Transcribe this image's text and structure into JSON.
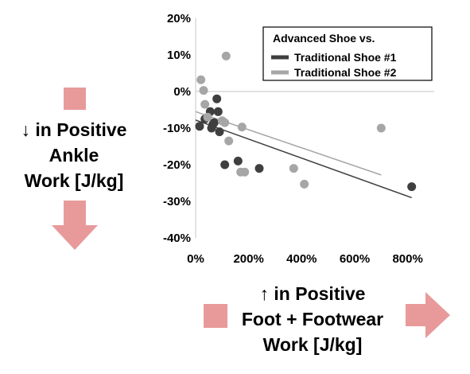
{
  "chart_data": {
    "type": "scatter",
    "title": "",
    "xlim": [
      0,
      900
    ],
    "ylim": [
      -40,
      20
    ],
    "x_ticks": [
      "0%",
      "200%",
      "400%",
      "600%",
      "800%"
    ],
    "x_tick_values": [
      0,
      200,
      400,
      600,
      800
    ],
    "y_ticks": [
      "20%",
      "10%",
      "0%",
      "-10%",
      "-20%",
      "-30%",
      "-40%"
    ],
    "y_tick_values": [
      20,
      10,
      0,
      -10,
      -20,
      -30,
      -40
    ],
    "grid": false,
    "legend": {
      "title": "Advanced Shoe vs.",
      "placement": "top-right",
      "entries": [
        "Traditional Shoe #1",
        "Traditional Shoe #2"
      ]
    },
    "series": [
      {
        "name": "Traditional Shoe #1",
        "color": "#3f3f3f",
        "points": [
          [
            15,
            -9.5
          ],
          [
            35,
            -7.5
          ],
          [
            55,
            -5.5
          ],
          [
            60,
            -10
          ],
          [
            65,
            -9
          ],
          [
            70,
            -8.5
          ],
          [
            80,
            -2
          ],
          [
            85,
            -5.5
          ],
          [
            90,
            -11
          ],
          [
            110,
            -20
          ],
          [
            160,
            -19
          ],
          [
            240,
            -21
          ],
          [
            815,
            -26
          ]
        ],
        "trendline": [
          [
            0,
            -7.8
          ],
          [
            815,
            -29
          ]
        ]
      },
      {
        "name": "Traditional Shoe #2",
        "color": "#a6a6a6",
        "points": [
          [
            20,
            3.2
          ],
          [
            30,
            0.3
          ],
          [
            35,
            -3.5
          ],
          [
            45,
            -7
          ],
          [
            100,
            -8
          ],
          [
            110,
            -8.5
          ],
          [
            115,
            9.7
          ],
          [
            125,
            -13.5
          ],
          [
            170,
            -22
          ],
          [
            175,
            -9.7
          ],
          [
            185,
            -22
          ],
          [
            370,
            -21
          ],
          [
            410,
            -25.3
          ],
          [
            700,
            -10
          ]
        ],
        "trendline": [
          [
            0,
            -5.5
          ],
          [
            700,
            -22.8
          ]
        ]
      }
    ]
  },
  "y_axis_label": {
    "lines": [
      "↓ in Positive",
      "Ankle",
      "Work [J/kg]"
    ]
  },
  "x_axis_label": {
    "lines": [
      "↑ in Positive",
      "Foot + Footwear",
      "Work [J/kg]"
    ]
  },
  "colors": {
    "arrow": "#e89a9a",
    "axis": "#d9d9d9"
  }
}
